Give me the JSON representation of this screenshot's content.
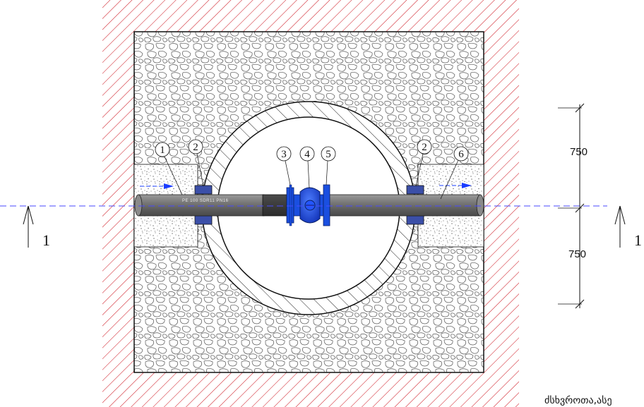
{
  "callouts": [
    "1",
    "2",
    "3",
    "4",
    "5",
    "2",
    "6"
  ],
  "dimensions": {
    "upper": "750",
    "lower": "750"
  },
  "section_marks": {
    "left": "1",
    "right": "1"
  },
  "pipe_marking": "PE 100  SDR11  PN16",
  "caption": "ძსხვროთა,ასე",
  "colors": {
    "soil_hatch": "#d0202a",
    "valve": "#1a4fe0",
    "flow_arrow": "#1a3cff",
    "axis_line": "#4a4aff",
    "pipe": "#6e6e6e",
    "seal": "#3b4fa8"
  }
}
